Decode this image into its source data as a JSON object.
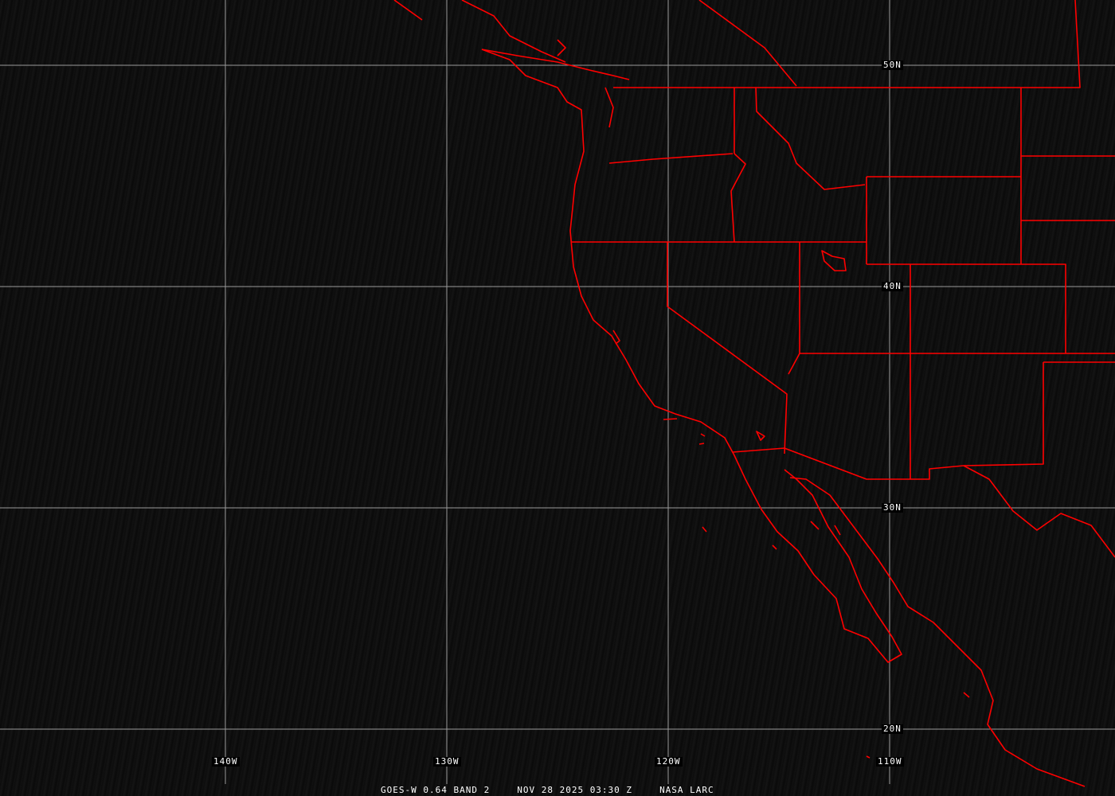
{
  "map": {
    "projection": "equirectangular",
    "lon_range": [
      -150,
      -100
    ],
    "lat_range": [
      16,
      53
    ],
    "grid_color": "#9a9a9a",
    "boundary_color": "#ff0000",
    "background_color": "#101010",
    "longitude_labels": [
      {
        "lon": -140,
        "text": "140W"
      },
      {
        "lon": -130,
        "text": "130W"
      },
      {
        "lon": -120,
        "text": "120W"
      },
      {
        "lon": -110,
        "text": "110W"
      }
    ],
    "latitude_labels": [
      {
        "lat": 50,
        "text": "50N"
      },
      {
        "lat": 40,
        "text": "40N"
      },
      {
        "lat": 30,
        "text": "30N"
      },
      {
        "lat": 20,
        "text": "20N"
      }
    ]
  },
  "caption": {
    "satellite": "GOES-W 0.64 BAND 2",
    "datetime": "NOV 28 2025 03:30 Z",
    "source": "NASA LARC"
  }
}
